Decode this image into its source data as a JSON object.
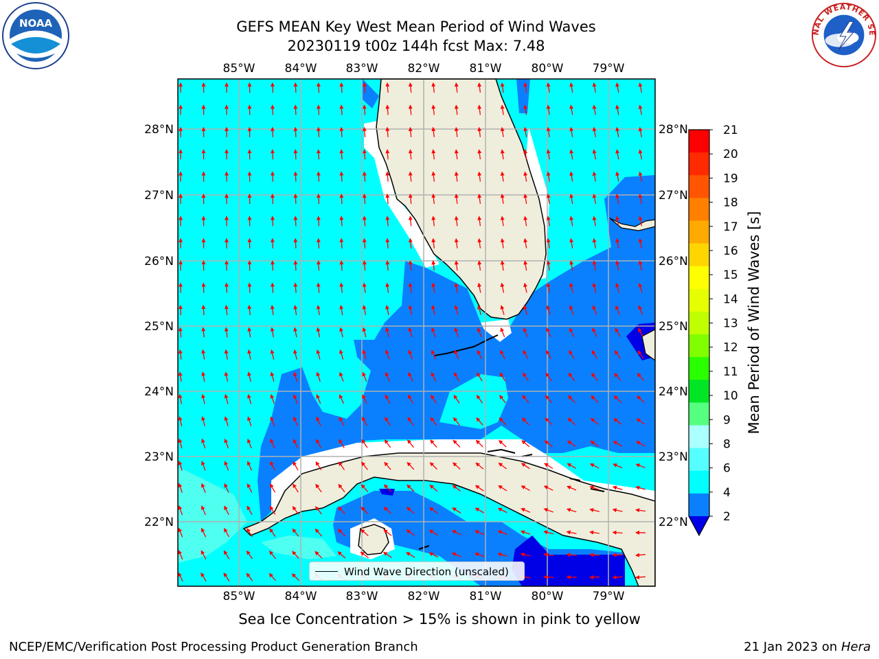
{
  "header": {
    "title_line1": "GEFS MEAN Key West Mean Period of Wind Waves",
    "title_line2": "20230119 t00z 144h fcst   Max: 7.48"
  },
  "logos": {
    "left": "NOAA",
    "right": "NATIONAL WEATHER SERVICE"
  },
  "map": {
    "lon_labels": [
      "85°W",
      "84°W",
      "83°W",
      "82°W",
      "81°W",
      "80°W",
      "79°W"
    ],
    "lat_labels": [
      "28°N",
      "27°N",
      "26°N",
      "25°N",
      "24°N",
      "23°N",
      "22°N"
    ],
    "legend_label": "Wind Wave Direction (unscaled)",
    "colors": {
      "land": "#efeedd",
      "coast": "#000000",
      "grid": "#b0b0b0",
      "arrow": "#ff0000",
      "ocean_fill_6_8": "#4ffff0",
      "ocean_fill_4_6": "#00ffff",
      "ocean_fill_2_4": "#0a80ff",
      "ocean_fill_lt2": "#0000e6"
    }
  },
  "colorbar": {
    "label": "Mean Period of Wind Waves [s]",
    "ticks": [
      "21",
      "20",
      "19",
      "18",
      "17",
      "16",
      "15",
      "14",
      "13",
      "12",
      "11",
      "10",
      "9",
      "8",
      "6",
      "4",
      "2"
    ],
    "colors_top_to_bottom": [
      "#ff0000",
      "#ff2a00",
      "#ff5500",
      "#ff8000",
      "#ffaa00",
      "#ffd500",
      "#ffff00",
      "#e6ff00",
      "#c0ff00",
      "#80ff00",
      "#2aff00",
      "#00e626",
      "#55ff80",
      "#aaffff",
      "#55ffff",
      "#00ffff",
      "#0a80ff"
    ],
    "under_color": "#0000e6"
  },
  "footer": {
    "note": "Sea Ice Concentration > 15% is shown in pink to yellow",
    "left": "NCEP/EMC/Verification Post Processing Product Generation Branch",
    "right_prefix": "21 Jan 2023 on ",
    "right_machine": "Hera"
  }
}
